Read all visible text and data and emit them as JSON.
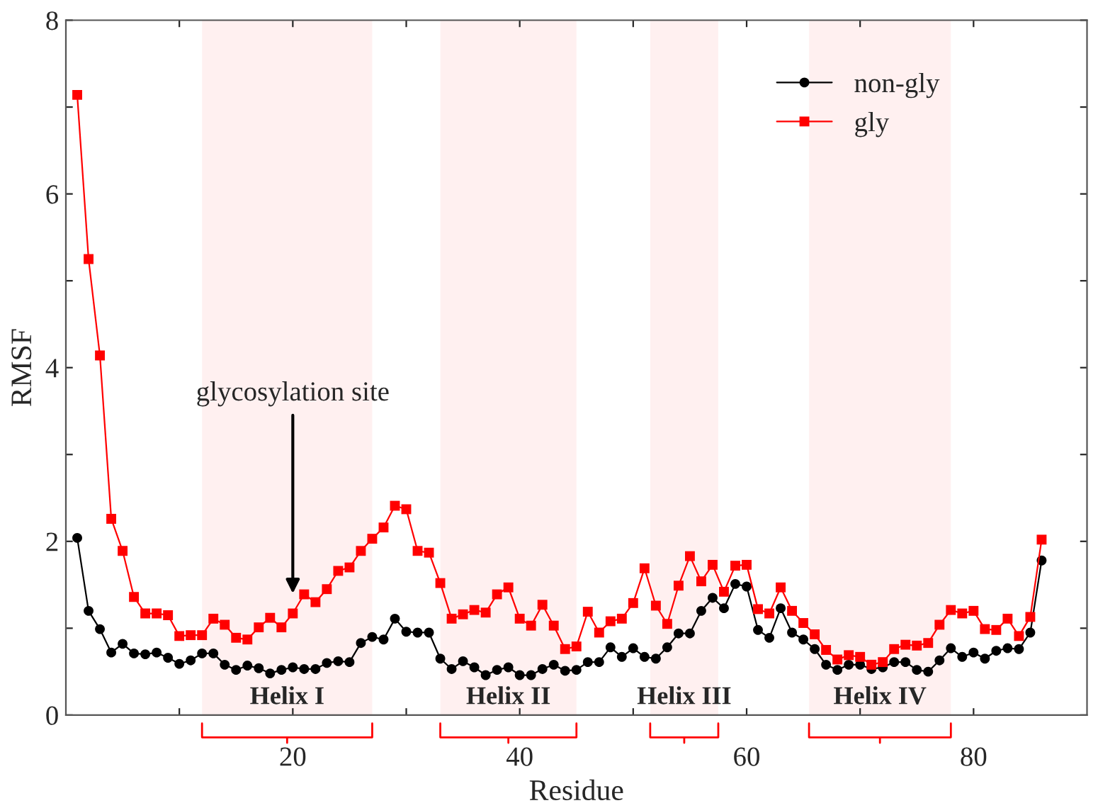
{
  "chart_data": {
    "type": "line",
    "xlabel": "Residue",
    "ylabel": "RMSF",
    "x": [
      1,
      2,
      3,
      4,
      5,
      6,
      7,
      8,
      9,
      10,
      11,
      12,
      13,
      14,
      15,
      16,
      17,
      18,
      19,
      20,
      21,
      22,
      23,
      24,
      25,
      26,
      27,
      28,
      29,
      30,
      31,
      32,
      33,
      34,
      35,
      36,
      37,
      38,
      39,
      40,
      41,
      42,
      43,
      44,
      45,
      46,
      47,
      48,
      49,
      50,
      51,
      52,
      53,
      54,
      55,
      56,
      57,
      58,
      59,
      60,
      61,
      62,
      63,
      64,
      65,
      66,
      67,
      68,
      69,
      70,
      71,
      72,
      73,
      74,
      75,
      76,
      77,
      78,
      79,
      80,
      81,
      82,
      83,
      84,
      85,
      86
    ],
    "series": [
      {
        "name": "non-gly",
        "color": "#000000",
        "marker": "circle",
        "values": [
          2.04,
          1.2,
          0.99,
          0.72,
          0.82,
          0.71,
          0.7,
          0.72,
          0.66,
          0.59,
          0.63,
          0.71,
          0.71,
          0.58,
          0.52,
          0.57,
          0.54,
          0.48,
          0.52,
          0.55,
          0.53,
          0.53,
          0.6,
          0.62,
          0.61,
          0.83,
          0.9,
          0.87,
          1.11,
          0.96,
          0.95,
          0.95,
          0.65,
          0.53,
          0.62,
          0.55,
          0.46,
          0.52,
          0.55,
          0.46,
          0.46,
          0.53,
          0.58,
          0.51,
          0.52,
          0.61,
          0.61,
          0.78,
          0.67,
          0.77,
          0.67,
          0.65,
          0.78,
          0.94,
          0.94,
          1.2,
          1.35,
          1.23,
          1.51,
          1.48,
          0.98,
          0.89,
          1.23,
          0.95,
          0.87,
          0.76,
          0.58,
          0.52,
          0.58,
          0.58,
          0.53,
          0.55,
          0.61,
          0.61,
          0.52,
          0.5,
          0.63,
          0.77,
          0.67,
          0.72,
          0.65,
          0.74,
          0.77,
          0.76,
          0.95,
          1.78
        ]
      },
      {
        "name": "gly",
        "color": "#ff0000",
        "marker": "square",
        "values": [
          7.14,
          5.25,
          4.14,
          2.26,
          1.89,
          1.36,
          1.17,
          1.17,
          1.15,
          0.91,
          0.92,
          0.92,
          1.11,
          1.04,
          0.89,
          0.87,
          1.01,
          1.12,
          1.01,
          1.17,
          1.39,
          1.3,
          1.45,
          1.66,
          1.7,
          1.89,
          2.03,
          2.16,
          2.41,
          2.37,
          1.89,
          1.87,
          1.52,
          1.11,
          1.16,
          1.21,
          1.18,
          1.39,
          1.47,
          1.11,
          1.03,
          1.27,
          1.03,
          0.76,
          0.79,
          1.19,
          0.95,
          1.08,
          1.11,
          1.29,
          1.69,
          1.26,
          1.05,
          1.49,
          1.83,
          1.54,
          1.73,
          1.42,
          1.72,
          1.73,
          1.22,
          1.17,
          1.47,
          1.2,
          1.06,
          0.93,
          0.75,
          0.64,
          0.69,
          0.67,
          0.58,
          0.61,
          0.76,
          0.81,
          0.8,
          0.83,
          1.04,
          1.21,
          1.17,
          1.2,
          0.99,
          0.98,
          1.11,
          0.91,
          1.13,
          2.02
        ]
      }
    ],
    "line_style": "solid",
    "xlim": [
      0,
      90
    ],
    "xticks": [
      {
        "value": 10,
        "label": null
      },
      20,
      {
        "value": 30,
        "label": null
      },
      40,
      {
        "value": 50,
        "label": null
      },
      60,
      {
        "value": 70,
        "label": null
      },
      80
    ],
    "ylim": [
      0,
      8
    ],
    "yticks": [
      0,
      {
        "value": 1,
        "label": null
      },
      2,
      {
        "value": 3,
        "label": null
      },
      4,
      {
        "value": 5,
        "label": null
      },
      6,
      {
        "value": 7,
        "label": null
      },
      8
    ],
    "grid": false,
    "legend": "top right",
    "bands": [
      {
        "axis": "x",
        "from": 12,
        "to": 27,
        "label": "Helix I",
        "color": "#ff0000"
      },
      {
        "axis": "x",
        "from": 33,
        "to": 45,
        "label": "Helix II",
        "color": "#ff0000"
      },
      {
        "axis": "x",
        "from": 51.5,
        "to": 57.5,
        "label": "Helix III",
        "color": "#ff0000"
      },
      {
        "axis": "x",
        "from": 65.5,
        "to": 78,
        "label": "Helix IV",
        "color": "#ff0000"
      }
    ],
    "annotations": [
      {
        "text": "glycosylation site",
        "x": 20,
        "y": 1.4
      }
    ]
  }
}
